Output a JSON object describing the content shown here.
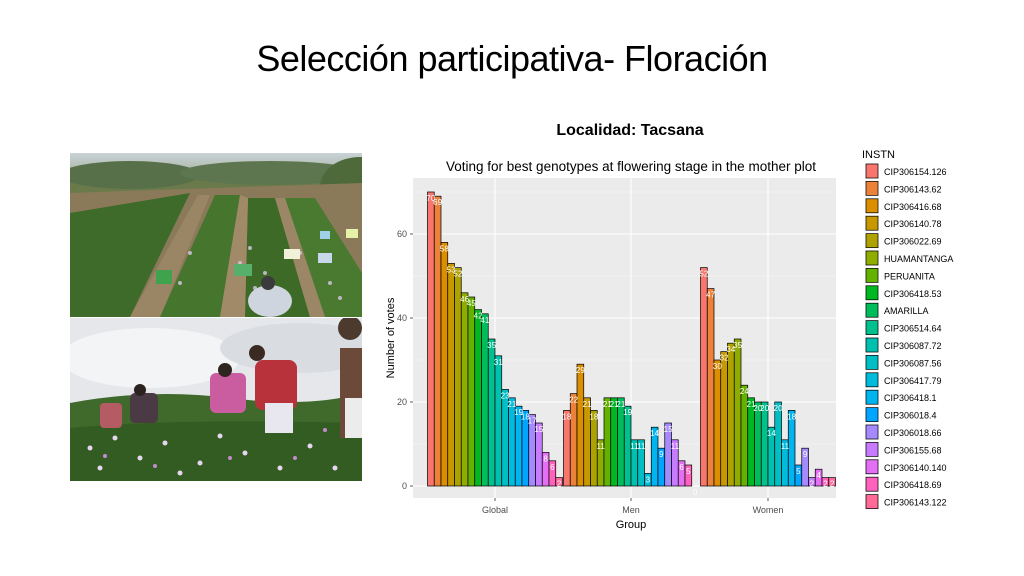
{
  "slide": {
    "title": "Selección participativa- Floración",
    "subtitle": "Localidad: Tacsana"
  },
  "photos": {
    "top": "potato-field-with-labels",
    "bottom": "farmers-selecting-in-field"
  },
  "chart_data": {
    "type": "bar",
    "title": "Voting for best genotypes at flowering stage in the mother plot",
    "xlabel": "Group",
    "ylabel": "Number of votes",
    "ylim": [
      0,
      72
    ],
    "yticks": [
      0,
      20,
      40,
      60
    ],
    "grid": true,
    "legend_title": "INSTN",
    "legend_position": "right",
    "groups": [
      "Global",
      "Men",
      "Women"
    ],
    "genotypes": [
      "CIP306154.126",
      "CIP306143.62",
      "CIP306416.68",
      "CIP306140.78",
      "CIP306022.69",
      "HUAMANTANGA",
      "PERUANITA",
      "CIP306418.53",
      "AMARILLA",
      "CIP306514.64",
      "CIP306087.72",
      "CIP306087.56",
      "CIP306417.79",
      "CIP306418.1",
      "CIP306018.4",
      "CIP306018.66",
      "CIP306155.68",
      "CIP306140.140",
      "CIP306418.69",
      "CIP306143.122"
    ],
    "colors": [
      "#f8766d",
      "#ec8239",
      "#db8e00",
      "#c79800",
      "#aea200",
      "#8fac00",
      "#64b200",
      "#00b81f",
      "#00bd5c",
      "#00c08d",
      "#00c1b0",
      "#00bfc4",
      "#00bbdb",
      "#00b4ef",
      "#00a5ff",
      "#a58aff",
      "#c77cff",
      "#e36ff5",
      "#ff62bc",
      "#ff6a98"
    ],
    "series": [
      {
        "name": "Global",
        "values": [
          70,
          69,
          58,
          53,
          52,
          46,
          45,
          42,
          41,
          35,
          31,
          23,
          21,
          19,
          18,
          17,
          15,
          8,
          6,
          2
        ]
      },
      {
        "name": "Men",
        "values": [
          18,
          22,
          29,
          21,
          18,
          11,
          21,
          21,
          21,
          19,
          11,
          11,
          3,
          14,
          9,
          15,
          11,
          6,
          5,
          0
        ]
      },
      {
        "name": "Women",
        "values": [
          52,
          47,
          30,
          32,
          34,
          35,
          24,
          21,
          20,
          20,
          14,
          20,
          11,
          18,
          5,
          9,
          2,
          4,
          2,
          2
        ]
      }
    ]
  }
}
